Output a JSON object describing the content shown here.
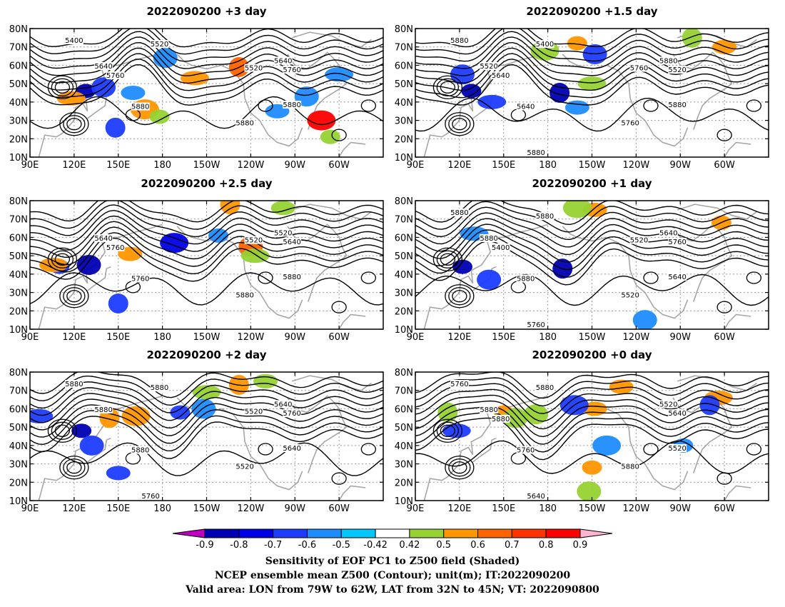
{
  "chart_data": {
    "type": "heatmap",
    "panels": [
      {
        "title": "2022090200 +3 day",
        "contour_labels": [
          "5400",
          "5520",
          "5640",
          "5760",
          "5520",
          "5640",
          "5760",
          "5880",
          "5880",
          "5880"
        ],
        "shaded": [
          {
            "lon": 128,
            "lat": 46,
            "level": -0.8
          },
          {
            "lon": 140,
            "lat": 48,
            "level": -0.6
          },
          {
            "lon": 118,
            "lat": 42,
            "level": 0.6
          },
          {
            "lon": 148,
            "lat": 26,
            "level": -0.6
          },
          {
            "lon": 160,
            "lat": 45,
            "level": -0.5
          },
          {
            "lon": 168,
            "lat": 36,
            "level": 0.6
          },
          {
            "lon": 178,
            "lat": 32,
            "level": 0.5
          },
          {
            "lon": 182,
            "lat": 64,
            "level": -0.5
          },
          {
            "lon": 202,
            "lat": 53,
            "level": 0.6
          },
          {
            "lon": 232,
            "lat": 59,
            "level": 0.7
          },
          {
            "lon": 258,
            "lat": 35,
            "level": -0.5
          },
          {
            "lon": 288,
            "lat": 30,
            "level": 0.8
          },
          {
            "lon": 294,
            "lat": 21,
            "level": 0.5
          },
          {
            "lon": 278,
            "lat": 43,
            "level": -0.5
          },
          {
            "lon": 300,
            "lat": 55,
            "level": -0.5
          }
        ]
      },
      {
        "title": "2022090200 +1.5 day",
        "contour_labels": [
          "5400",
          "5520",
          "5640",
          "5760",
          "5880",
          "5520",
          "5640",
          "5760",
          "5880",
          "5880",
          "5880"
        ],
        "shaded": [
          {
            "lon": 128,
            "lat": 46,
            "level": -0.8
          },
          {
            "lon": 122,
            "lat": 55,
            "level": -0.6
          },
          {
            "lon": 142,
            "lat": 40,
            "level": -0.6
          },
          {
            "lon": 188,
            "lat": 45,
            "level": -0.8
          },
          {
            "lon": 200,
            "lat": 37,
            "level": -0.5
          },
          {
            "lon": 178,
            "lat": 68,
            "level": 0.5
          },
          {
            "lon": 200,
            "lat": 72,
            "level": 0.6
          },
          {
            "lon": 212,
            "lat": 66,
            "level": -0.6
          },
          {
            "lon": 210,
            "lat": 50,
            "level": 0.5
          },
          {
            "lon": 278,
            "lat": 75,
            "level": 0.5
          },
          {
            "lon": 300,
            "lat": 70,
            "level": 0.6
          }
        ]
      },
      {
        "title": "2022090200 +2.5 day",
        "contour_labels": [
          "5640",
          "5760",
          "5520",
          "5520",
          "5640",
          "5760",
          "5880",
          "5880"
        ],
        "shaded": [
          {
            "lon": 110,
            "lat": 44,
            "level": -0.6
          },
          {
            "lon": 130,
            "lat": 45,
            "level": -0.8
          },
          {
            "lon": 106,
            "lat": 45,
            "level": 0.6
          },
          {
            "lon": 150,
            "lat": 24,
            "level": -0.6
          },
          {
            "lon": 158,
            "lat": 51,
            "level": 0.6
          },
          {
            "lon": 188,
            "lat": 57,
            "level": -0.7
          },
          {
            "lon": 218,
            "lat": 61,
            "level": -0.5
          },
          {
            "lon": 240,
            "lat": 55,
            "level": 0.7
          },
          {
            "lon": 243,
            "lat": 50,
            "level": 0.5
          },
          {
            "lon": 226,
            "lat": 78,
            "level": 0.6
          },
          {
            "lon": 262,
            "lat": 76,
            "level": 0.5
          }
        ]
      },
      {
        "title": "2022090200 +1 day",
        "contour_labels": [
          "5400",
          "5520",
          "5640",
          "5760",
          "5880",
          "5520",
          "5640",
          "5760",
          "5880",
          "5880",
          "5880"
        ],
        "shaded": [
          {
            "lon": 122,
            "lat": 44,
            "level": -0.8
          },
          {
            "lon": 140,
            "lat": 37,
            "level": -0.6
          },
          {
            "lon": 130,
            "lat": 62,
            "level": -0.5
          },
          {
            "lon": 190,
            "lat": 43,
            "level": -0.8
          },
          {
            "lon": 212,
            "lat": 75,
            "level": 0.6
          },
          {
            "lon": 200,
            "lat": 76,
            "level": 0.5
          },
          {
            "lon": 298,
            "lat": 68,
            "level": 0.6
          },
          {
            "lon": 246,
            "lat": 15,
            "level": -0.5
          }
        ]
      },
      {
        "title": "2022090200 +2 day",
        "contour_labels": [
          "5520",
          "5640",
          "5760",
          "5880",
          "5520",
          "5640",
          "5760",
          "5880",
          "5880",
          "5880"
        ],
        "shaded": [
          {
            "lon": 125,
            "lat": 48,
            "level": -0.8
          },
          {
            "lon": 132,
            "lat": 40,
            "level": -0.6
          },
          {
            "lon": 96,
            "lat": 56,
            "level": -0.6
          },
          {
            "lon": 144,
            "lat": 55,
            "level": 0.6
          },
          {
            "lon": 150,
            "lat": 25,
            "level": -0.6
          },
          {
            "lon": 162,
            "lat": 56,
            "level": 0.6
          },
          {
            "lon": 192,
            "lat": 58,
            "level": -0.6
          },
          {
            "lon": 208,
            "lat": 60,
            "level": -0.5
          },
          {
            "lon": 210,
            "lat": 69,
            "level": 0.5
          },
          {
            "lon": 232,
            "lat": 73,
            "level": 0.6
          },
          {
            "lon": 250,
            "lat": 75,
            "level": 0.5
          }
        ]
      },
      {
        "title": "2022090200 +0 day",
        "contour_labels": [
          "5520",
          "5640",
          "5760",
          "5880",
          "5520",
          "5640",
          "5760",
          "5880",
          "5880",
          "5880"
        ],
        "shaded": [
          {
            "lon": 150,
            "lat": 58,
            "level": 0.6
          },
          {
            "lon": 158,
            "lat": 55,
            "level": 0.5
          },
          {
            "lon": 118,
            "lat": 48,
            "level": -0.6
          },
          {
            "lon": 112,
            "lat": 58,
            "level": 0.5
          },
          {
            "lon": 212,
            "lat": 60,
            "level": 0.6
          },
          {
            "lon": 198,
            "lat": 62,
            "level": -0.6
          },
          {
            "lon": 210,
            "lat": 28,
            "level": 0.6
          },
          {
            "lon": 208,
            "lat": 15,
            "level": 0.5
          },
          {
            "lon": 296,
            "lat": 66,
            "level": 0.6
          },
          {
            "lon": 290,
            "lat": 62,
            "level": -0.6
          },
          {
            "lon": 230,
            "lat": 72,
            "level": 0.6
          },
          {
            "lon": 220,
            "lat": 40,
            "level": -0.5
          },
          {
            "lon": 272,
            "lat": 40,
            "level": -0.5
          },
          {
            "lon": 172,
            "lat": 57,
            "level": 0.5
          }
        ]
      }
    ],
    "xticks": [
      "90E",
      "120E",
      "150E",
      "180",
      "150W",
      "120W",
      "90W",
      "60W"
    ],
    "xtick_lons": [
      90,
      120,
      150,
      180,
      210,
      240,
      270,
      300
    ],
    "yticks": [
      "80N",
      "70N",
      "60N",
      "50N",
      "40N",
      "30N",
      "20N",
      "10N"
    ],
    "ytick_lats": [
      80,
      70,
      60,
      50,
      40,
      30,
      20,
      10
    ],
    "xlim": [
      90,
      330
    ],
    "ylim": [
      10,
      80
    ],
    "grid": true,
    "colorbar": {
      "labels": [
        "-0.9",
        "-0.8",
        "-0.7",
        "-0.6",
        "-0.5",
        "-0.42",
        "0.42",
        "0.5",
        "0.6",
        "0.7",
        "0.8",
        "0.9"
      ],
      "colors": [
        "#c000c0",
        "#0000b4",
        "#0000e6",
        "#1e3cff",
        "#1e8cff",
        "#00c8ff",
        "#ffffff",
        "#96d232",
        "#ff9600",
        "#ff6400",
        "#ff3200",
        "#ff0000",
        "#ffb4d2"
      ]
    },
    "caption": [
      "Sensitivity of EOF PC1 to Z500 field (Shaded)",
      "NCEP ensemble mean Z500 (Contour); unit(m); IT:2022090200",
      "Valid area: LON from 79W to 62W, LAT from 32N to 45N; VT: 2022090800"
    ]
  }
}
